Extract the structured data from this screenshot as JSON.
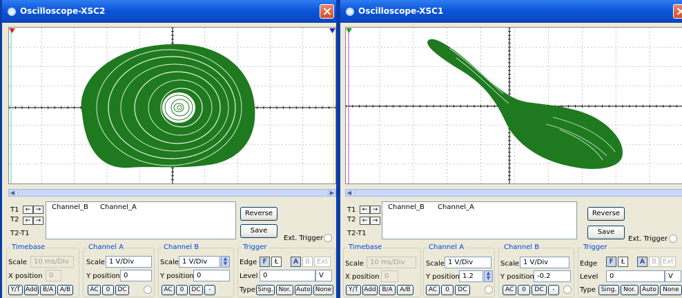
{
  "left": {
    "title": "Oscilloscope-XSC2",
    "cursor": {
      "t1": "T1",
      "t2": "T2",
      "t2t1": "T2-T1",
      "channel_b": "Channel_B",
      "channel_a": "Channel_A"
    },
    "buttons": {
      "reverse": "Reverse",
      "save": "Save",
      "ext_trigger": "Ext. Trigger"
    },
    "timebase": {
      "label": "Timebase",
      "scale_label": "Scale",
      "scale": "10 ms/Div",
      "xpos_label": "X position",
      "xpos": "0",
      "modes": [
        "Y/T",
        "Add",
        "B/A",
        "A/B"
      ]
    },
    "channel_a": {
      "label": "Channel A",
      "scale_label": "Scale",
      "scale": "1  V/Div",
      "ypos_label": "Y position",
      "ypos": "0",
      "coupling": [
        "AC",
        "0",
        "DC"
      ]
    },
    "channel_b": {
      "label": "Channel B",
      "scale_label": "Scale",
      "scale": "1  V/Div",
      "ypos_label": "Y position",
      "ypos": "0",
      "coupling": [
        "AC",
        "0",
        "DC",
        "-"
      ]
    },
    "trigger": {
      "label": "Trigger",
      "edge_label": "Edge",
      "edges": [
        "F",
        "Ł",
        "A",
        "B",
        "Ext"
      ],
      "level_label": "Level",
      "level": "0",
      "level_unit": "V",
      "type_label": "Type",
      "types": [
        "Sing.",
        "Nor.",
        "Auto",
        "None"
      ]
    }
  },
  "right": {
    "title": "Oscilloscope-XSC1",
    "cursor": {
      "t1": "T1",
      "t2": "T2",
      "t2t1": "T2-T1",
      "channel_b": "Channel_B",
      "channel_a": "Channel_A"
    },
    "buttons": {
      "reverse": "Reverse",
      "save": "Save",
      "ext_trigger": "Ext. Trigger"
    },
    "timebase": {
      "label": "Timebase",
      "scale_label": "Scale",
      "scale": "10 ms/Div",
      "xpos_label": "X position",
      "xpos": "0",
      "modes": [
        "Y/T",
        "Add",
        "B/A",
        "A/B"
      ]
    },
    "channel_a": {
      "label": "Channel A",
      "scale_label": "Scale",
      "scale": "1  V/Div",
      "ypos_label": "Y position",
      "ypos": "1.2",
      "coupling": [
        "AC",
        "0",
        "DC"
      ]
    },
    "channel_b": {
      "label": "Channel B",
      "scale_label": "Scale",
      "scale": "1  V/Div",
      "ypos_label": "Y position",
      "ypos": "-0.2",
      "coupling": [
        "AC",
        "0",
        "DC",
        "-"
      ]
    },
    "trigger": {
      "label": "Trigger",
      "edge_label": "Edge",
      "edges": [
        "F",
        "Ł",
        "A",
        "B",
        "Ext"
      ],
      "level_label": "Level",
      "level": "0",
      "level_unit": "V",
      "type_label": "Type",
      "types": [
        "Sing.",
        "Nor.",
        "Auto",
        "None"
      ]
    }
  },
  "colors": {
    "trace": "#1f7a1f",
    "titlebar": "#0b56da",
    "grid": "#9a9a9a",
    "close": "#d2502a",
    "cursor_t1": "#e02020",
    "cursor_t2": "#2020c0",
    "cursor_line": "#40d0d0"
  }
}
